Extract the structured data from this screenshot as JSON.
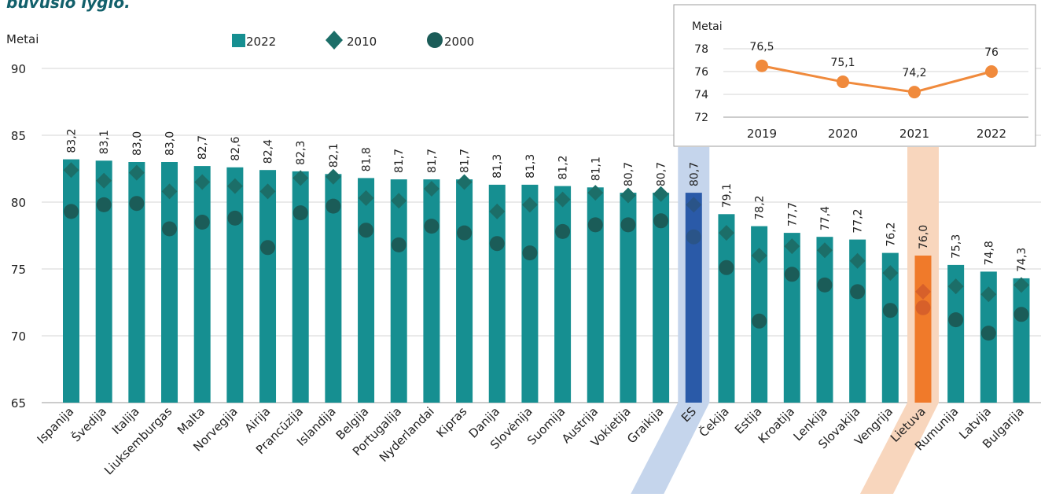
{
  "title_fragment": "buvusio lygio.",
  "colors": {
    "bar": "#168f91",
    "eu_bar": "#2a5aa8",
    "eu_band": "#c5d5ec",
    "lt_bar": "#f07a2a",
    "lt_band": "#f8d6bd",
    "marker_2010": "#1c6e68",
    "marker_2000": "#1b5c58",
    "eu_marker": "#2a5488",
    "lt_marker": "#d7602a",
    "inset_line": "#f08a3c",
    "grid": "#d6d6d6"
  },
  "chart_data": [
    {
      "type": "bar",
      "title": "",
      "ylabel": "Metai",
      "ylim": [
        65,
        90
      ],
      "yticks": [
        65,
        70,
        75,
        80,
        85,
        90
      ],
      "grid": true,
      "legend_position": "top",
      "highlight": [
        "ES",
        "Lietuva"
      ],
      "legend": [
        {
          "label": "2022",
          "marker": "square"
        },
        {
          "label": "2010",
          "marker": "diamond"
        },
        {
          "label": "2000",
          "marker": "circle"
        }
      ],
      "categories": [
        "Ispanija",
        "Švedija",
        "Italija",
        "Liuksemburgas",
        "Malta",
        "Norvegija",
        "Airija",
        "Prancūzija",
        "Islandija",
        "Belgija",
        "Portugalija",
        "Nyderlandai",
        "Kipras",
        "Danija",
        "Slovėnija",
        "Suomija",
        "Austrija",
        "Vokietija",
        "Graikija",
        "ES",
        "Čekija",
        "Estija",
        "Kroatija",
        "Lenkija",
        "Slovakija",
        "Vengrija",
        "Lietuva",
        "Rumunija",
        "Latvija",
        "Bulgarija"
      ],
      "series": [
        {
          "name": "2022",
          "values": [
            83.2,
            83.1,
            83.0,
            83.0,
            82.7,
            82.6,
            82.4,
            82.3,
            82.1,
            81.8,
            81.7,
            81.7,
            81.7,
            81.3,
            81.3,
            81.2,
            81.1,
            80.7,
            80.7,
            80.7,
            79.1,
            78.2,
            77.7,
            77.4,
            77.2,
            76.2,
            76.0,
            75.3,
            74.8,
            74.3
          ],
          "labels": [
            "83,2",
            "83,1",
            "83,0",
            "83,0",
            "82,7",
            "82,6",
            "82,4",
            "82,3",
            "82,1",
            "81,8",
            "81,7",
            "81,7",
            "81,7",
            "81,3",
            "81,3",
            "81,2",
            "81,1",
            "80,7",
            "80,7",
            "80,7",
            "79,1",
            "78,2",
            "77,7",
            "77,4",
            "77,2",
            "76,2",
            "76,0",
            "75,3",
            "74,8",
            "74,3"
          ]
        },
        {
          "name": "2010",
          "values": [
            82.4,
            81.6,
            82.2,
            80.8,
            81.5,
            81.2,
            80.8,
            81.8,
            81.9,
            80.3,
            80.1,
            81.0,
            81.5,
            79.3,
            79.8,
            80.2,
            80.7,
            80.5,
            80.6,
            79.8,
            77.7,
            76.0,
            76.7,
            76.4,
            75.6,
            74.7,
            73.3,
            73.7,
            73.1,
            73.8
          ]
        },
        {
          "name": "2000",
          "values": [
            79.3,
            79.8,
            79.9,
            78.0,
            78.5,
            78.8,
            76.6,
            79.2,
            79.7,
            77.9,
            76.8,
            78.2,
            77.7,
            76.9,
            76.2,
            77.8,
            78.3,
            78.3,
            78.6,
            77.4,
            75.1,
            71.1,
            74.6,
            73.8,
            73.3,
            71.9,
            72.1,
            71.2,
            70.2,
            71.6
          ]
        }
      ]
    },
    {
      "type": "line",
      "title": "",
      "ylabel": "Metai",
      "ylim": [
        72,
        78
      ],
      "yticks": [
        72,
        74,
        76,
        78
      ],
      "grid": true,
      "categories": [
        "2019",
        "2020",
        "2021",
        "2022"
      ],
      "series": [
        {
          "name": "",
          "values": [
            76.5,
            75.1,
            74.2,
            76.0
          ],
          "labels": [
            "76,5",
            "75,1",
            "74,2",
            "76"
          ]
        }
      ]
    }
  ]
}
